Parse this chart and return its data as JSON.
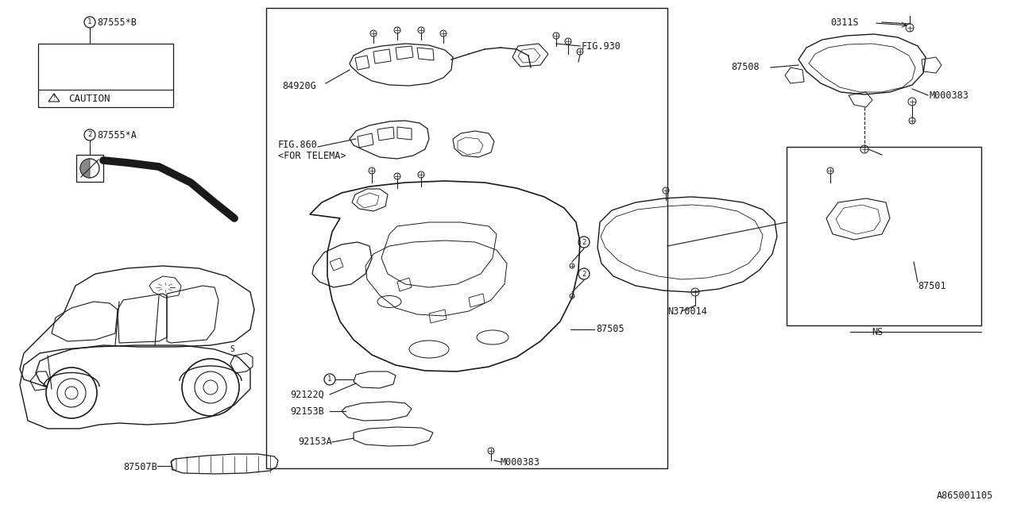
{
  "bg_color": "#ffffff",
  "line_color": "#1a1a1a",
  "labels": {
    "part1_label": "87555*B",
    "caution_text": "CAUTION",
    "part2_label": "87555*A",
    "part3_label": "84920G",
    "part4_label": "FIG.860",
    "part4b_label": "<FOR TELEMA>",
    "part5_label": "FIG.930",
    "part6_label": "87505",
    "part7_label": "92122Q",
    "part8_label": "92153B",
    "part9_label": "92153A",
    "part10_label": "87507B",
    "part11_label": "M000383",
    "part12_label": "N370014",
    "part13_label": "87501",
    "part14_label": "87508",
    "part15_label": "0311S",
    "part16_label": "NS",
    "bottom_code": "A865001105"
  },
  "font_size": 8.5,
  "font_family": "monospace"
}
